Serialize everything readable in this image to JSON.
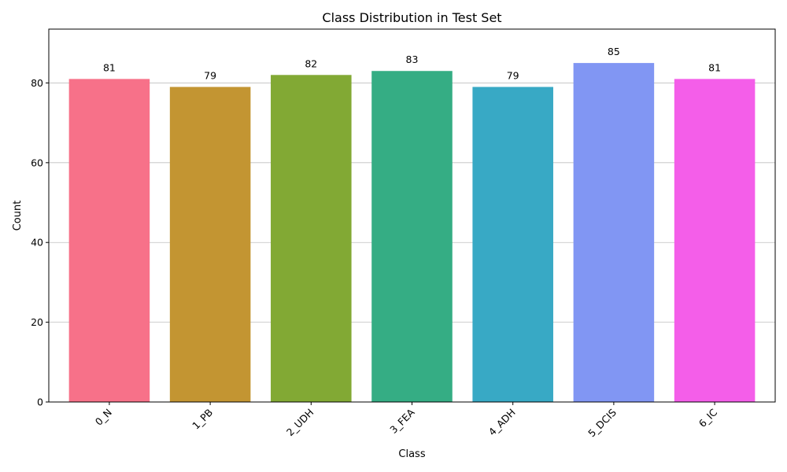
{
  "chart_data": {
    "type": "bar",
    "title": "Class Distribution in Test Set",
    "xlabel": "Class",
    "ylabel": "Count",
    "categories": [
      "0_N",
      "1_PB",
      "2_UDH",
      "3_FEA",
      "4_ADH",
      "5_DCIS",
      "6_IC"
    ],
    "values": [
      81,
      79,
      82,
      83,
      79,
      85,
      81
    ],
    "colors": [
      "#f77189",
      "#c39532",
      "#82a934",
      "#35ad84",
      "#38a9c5",
      "#8196f3",
      "#f45ee9"
    ],
    "ylim": [
      0,
      93.5
    ],
    "yticks": [
      0,
      20,
      40,
      60,
      80
    ],
    "grid": "y",
    "legend": "none",
    "xtick_rotation": 45
  }
}
